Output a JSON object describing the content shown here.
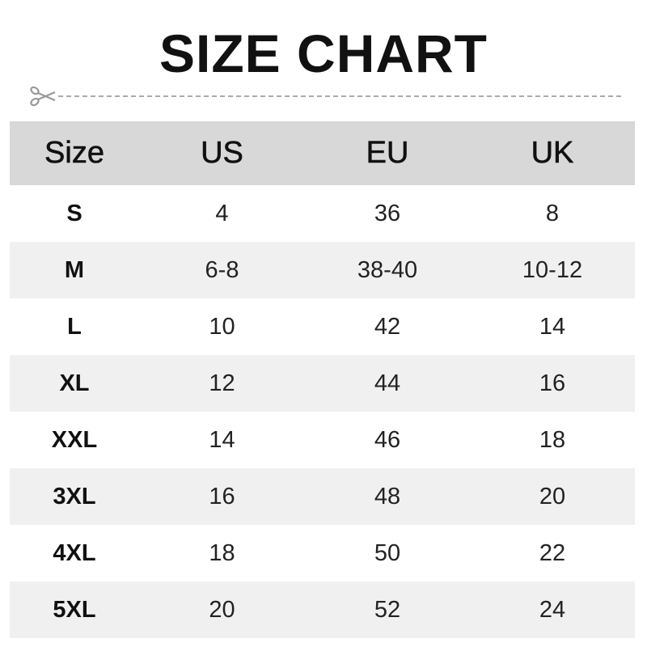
{
  "title": "SIZE CHART",
  "icons": {
    "cut_line": "scissors-icon"
  },
  "colors": {
    "header_bg": "#d8d8d8",
    "stripe_bg": "#f0f0f0",
    "dash": "#aaaaaa"
  },
  "table": {
    "headers": [
      "Size",
      "US",
      "EU",
      "UK"
    ],
    "rows": [
      [
        "S",
        "4",
        "36",
        "8"
      ],
      [
        "M",
        "6-8",
        "38-40",
        "10-12"
      ],
      [
        "L",
        "10",
        "42",
        "14"
      ],
      [
        "XL",
        "12",
        "44",
        "16"
      ],
      [
        "XXL",
        "14",
        "46",
        "18"
      ],
      [
        "3XL",
        "16",
        "48",
        "20"
      ],
      [
        "4XL",
        "18",
        "50",
        "22"
      ],
      [
        "5XL",
        "20",
        "52",
        "24"
      ]
    ]
  }
}
